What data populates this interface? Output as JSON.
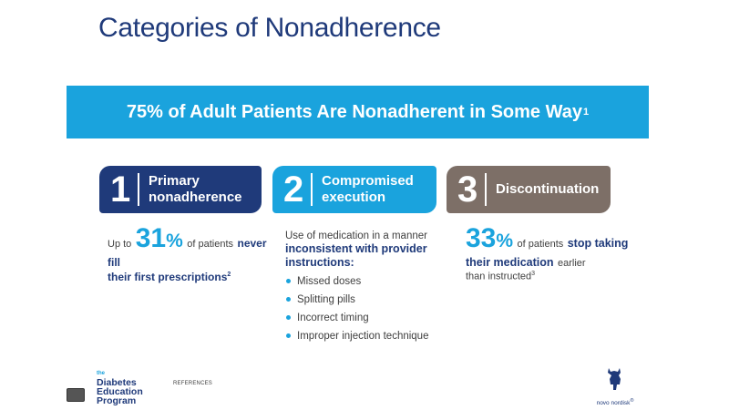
{
  "title": "Categories of Nonadherence",
  "banner": {
    "text": "75% of Adult Patients Are Nonadherent in Some Way",
    "ref": "1"
  },
  "categories": [
    {
      "number": "1",
      "label_line1": "Primary",
      "label_line2": "nonadherence"
    },
    {
      "number": "2",
      "label_line1": "Compromised",
      "label_line2": "execution"
    },
    {
      "number": "3",
      "label_line1": "Discontinuation",
      "label_line2": ""
    }
  ],
  "cat1_body": {
    "prefix": "Up to",
    "big_number": "31",
    "pct": "%",
    "suffix": "of patients",
    "bold1": "never fill",
    "bold2": "their first prescriptions",
    "ref": "2"
  },
  "cat2_body": {
    "intro": "Use of medication in a manner",
    "bold": "inconsistent with provider instructions:",
    "bullets": [
      "Missed doses",
      "Splitting pills",
      "Incorrect timing",
      "Improper injection technique"
    ]
  },
  "cat3_body": {
    "big_number": "33",
    "pct": "%",
    "suffix": "of patients",
    "bold1": "stop taking",
    "bold2": "their medication",
    "tail1": "earlier",
    "tail2": "than instructed",
    "ref": "3"
  },
  "footer": {
    "logo_the": "the",
    "logo_line1": "Diabetes",
    "logo_line2": "Education",
    "logo_line3": "Program",
    "references": "REFERENCES",
    "brand": "novo nordisk",
    "brand_mark": "®"
  },
  "colors": {
    "navy": "#1f3a7a",
    "cyan": "#1aa3dd",
    "taupe": "#7d6f67"
  }
}
